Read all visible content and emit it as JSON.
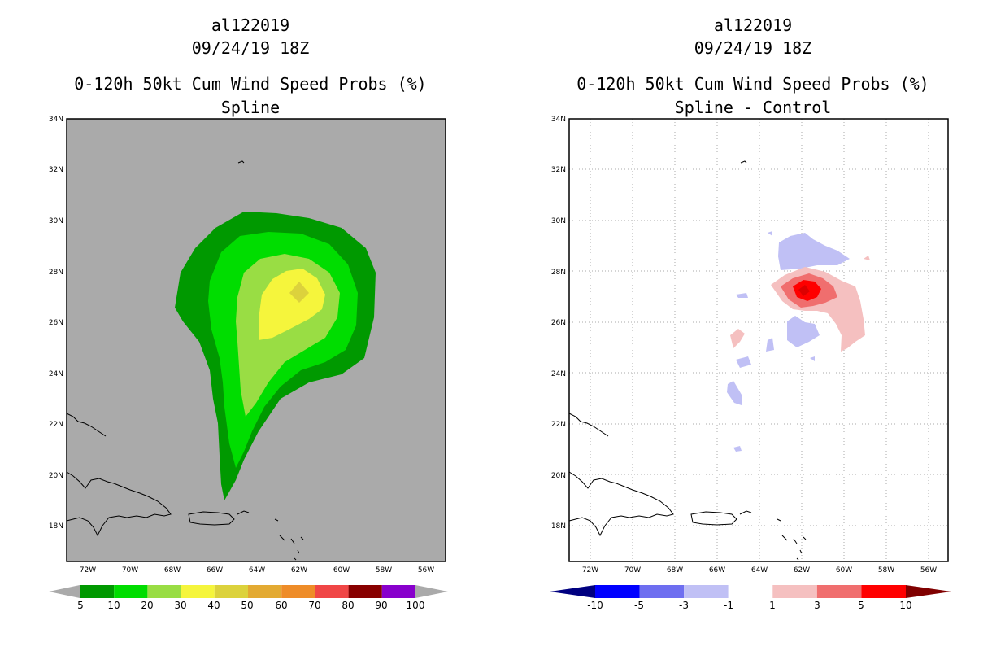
{
  "panels": [
    {
      "id": "left",
      "storm_id": "al122019",
      "datetime": "09/24/19 18Z",
      "product": "0-120h 50kt Cum Wind Speed Probs (%)",
      "subtitle": "Spline",
      "background": "#aaaaaa",
      "gridlines": false
    },
    {
      "id": "right",
      "storm_id": "al122019",
      "datetime": "09/24/19 18Z",
      "product": "0-120h 50kt Cum Wind Speed Probs (%)",
      "subtitle": "Spline - Control",
      "background": "#ffffff",
      "gridlines": true
    }
  ],
  "axes": {
    "lon_ticks": [
      "72W",
      "70W",
      "68W",
      "66W",
      "64W",
      "62W",
      "60W",
      "58W",
      "56W"
    ],
    "lat_ticks": [
      "34N",
      "32N",
      "30N",
      "28N",
      "26N",
      "24N",
      "22N",
      "20N",
      "18N"
    ],
    "lon_range": [
      -73.0,
      -55.0
    ],
    "lat_range": [
      16.5,
      34.0
    ]
  },
  "colorbar_left": {
    "labels": [
      "5",
      "10",
      "20",
      "30",
      "40",
      "50",
      "60",
      "70",
      "80",
      "90",
      "100"
    ],
    "colors": [
      "#009900",
      "#00dd00",
      "#99dd44",
      "#f5f53c",
      "#dcd23c",
      "#e3aa32",
      "#ee8c28",
      "#f04646",
      "#880000",
      "#8800cc"
    ],
    "arrow_color": "#aaaaaa"
  },
  "colorbar_right": {
    "labels": [
      "-10",
      "-5",
      "-3",
      "-1",
      "1",
      "3",
      "5",
      "10"
    ],
    "colors": [
      "#0000ff",
      "#6e6ef0",
      "#c0c0f5",
      "#ffffff",
      "#f5c0c0",
      "#f06e6e",
      "#ff0000"
    ],
    "low_arrow_color": "#000080",
    "high_arrow_color": "#800000"
  },
  "legend": {
    "spline_levels": [
      {
        "min": 5,
        "color": "#009900"
      },
      {
        "min": 10,
        "color": "#00dd00"
      },
      {
        "min": 20,
        "color": "#99dd44"
      },
      {
        "min": 30,
        "color": "#f5f53c"
      },
      {
        "min": 40,
        "color": "#dcd23c"
      }
    ]
  }
}
